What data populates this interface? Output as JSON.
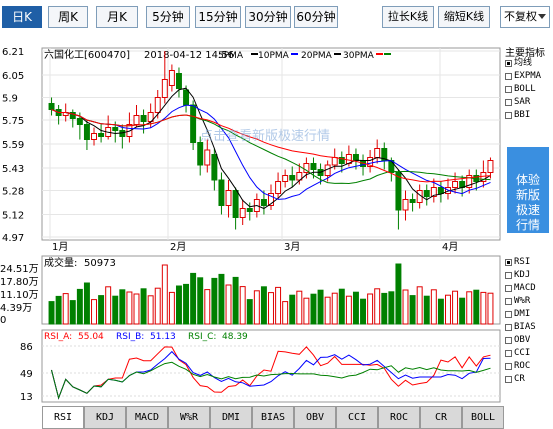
{
  "period_tabs": [
    {
      "label": "日K",
      "active": true
    },
    {
      "label": "周K",
      "active": false
    },
    {
      "label": "月K",
      "active": false
    },
    {
      "label": "5分钟",
      "active": false
    },
    {
      "label": "15分钟",
      "active": false
    },
    {
      "label": "30分钟",
      "active": false
    },
    {
      "label": "60分钟",
      "active": false
    }
  ],
  "toolbar": {
    "lengthen_label": "拉长K线",
    "shorten_label": "缩短K线",
    "adjust_label": "不复权"
  },
  "header": {
    "stock": "六国化工[600470]",
    "datetime": "2018-04-12 14:56",
    "ma_labels": [
      "5PMA",
      "10PMA",
      "20PMA",
      "30PMA"
    ]
  },
  "watermark": "点击查看新版极速行情",
  "main_indicators": {
    "title": "主要指标",
    "items": [
      {
        "label": "均线",
        "checked": true
      },
      {
        "label": "EXPMA",
        "checked": false
      },
      {
        "label": "BOLL",
        "checked": false
      },
      {
        "label": "SAR",
        "checked": false
      },
      {
        "label": "BBI",
        "checked": false
      }
    ]
  },
  "ad_text": [
    "体验",
    "新版",
    "极速",
    "行情"
  ],
  "sub_indicators": [
    {
      "label": "RSI",
      "checked": true
    },
    {
      "label": "KDJ",
      "checked": false
    },
    {
      "label": "MACD",
      "checked": false
    },
    {
      "label": "W%R",
      "checked": false
    },
    {
      "label": "DMI",
      "checked": false
    },
    {
      "label": "BIAS",
      "checked": false
    },
    {
      "label": "OBV",
      "checked": false
    },
    {
      "label": "CCI",
      "checked": false
    },
    {
      "label": "ROC",
      "checked": false
    },
    {
      "label": "CR",
      "checked": false
    }
  ],
  "bottom_tabs": [
    "RSI",
    "KDJ",
    "MACD",
    "W%R",
    "DMI",
    "BIAS",
    "OBV",
    "CCI",
    "ROC",
    "CR",
    "BOLL"
  ],
  "volume": {
    "label": "成交量:",
    "value": "50973",
    "ticks": [
      "24.51万",
      "17.80万",
      "11.10万",
      "4.39万",
      "0"
    ]
  },
  "rsi": {
    "a_label": "RSI_A:",
    "a_value": "55.04",
    "b_label": "RSI_B:",
    "b_value": "51.13",
    "c_label": "RSI_C:",
    "c_value": "48.39",
    "ticks": [
      "86",
      "49",
      "13"
    ]
  },
  "chart_data": {
    "type": "candlestick",
    "y_ticks": [
      6.21,
      6.05,
      5.9,
      5.75,
      5.59,
      5.43,
      5.28,
      5.12,
      4.97
    ],
    "ylim": [
      4.97,
      6.21
    ],
    "x_ticks": [
      "1月",
      "2月",
      "3月",
      "4月"
    ],
    "candles": [
      [
        5.86,
        5.82,
        5.9,
        5.78
      ],
      [
        5.82,
        5.78,
        5.85,
        5.72
      ],
      [
        5.78,
        5.8,
        5.86,
        5.74
      ],
      [
        5.8,
        5.76,
        5.82,
        5.7
      ],
      [
        5.76,
        5.72,
        5.8,
        5.62
      ],
      [
        5.72,
        5.62,
        5.75,
        5.55
      ],
      [
        5.62,
        5.66,
        5.7,
        5.58
      ],
      [
        5.66,
        5.64,
        5.72,
        5.6
      ],
      [
        5.64,
        5.7,
        5.78,
        5.62
      ],
      [
        5.7,
        5.68,
        5.74,
        5.6
      ],
      [
        5.68,
        5.64,
        5.72,
        5.56
      ],
      [
        5.64,
        5.72,
        5.8,
        5.6
      ],
      [
        5.72,
        5.78,
        5.85,
        5.7
      ],
      [
        5.78,
        5.74,
        5.82,
        5.66
      ],
      [
        5.74,
        5.8,
        5.86,
        5.7
      ],
      [
        5.8,
        5.9,
        5.95,
        5.76
      ],
      [
        5.9,
        6.02,
        6.21,
        5.86
      ],
      [
        5.98,
        6.08,
        6.12,
        5.94
      ],
      [
        6.06,
        5.96,
        6.1,
        5.9
      ],
      [
        5.95,
        5.85,
        5.98,
        5.8
      ],
      [
        5.85,
        5.6,
        5.88,
        5.55
      ],
      [
        5.6,
        5.45,
        5.64,
        5.38
      ],
      [
        5.45,
        5.55,
        5.62,
        5.4
      ],
      [
        5.52,
        5.35,
        5.56,
        5.28
      ],
      [
        5.35,
        5.18,
        5.4,
        5.12
      ],
      [
        5.18,
        5.28,
        5.35,
        5.1
      ],
      [
        5.28,
        5.1,
        5.3,
        5.02
      ],
      [
        5.1,
        5.16,
        5.22,
        5.05
      ],
      [
        5.16,
        5.14,
        5.2,
        5.08
      ],
      [
        5.14,
        5.22,
        5.26,
        5.1
      ],
      [
        5.22,
        5.18,
        5.28,
        5.12
      ],
      [
        5.18,
        5.26,
        5.32,
        5.15
      ],
      [
        5.26,
        5.34,
        5.4,
        5.22
      ],
      [
        5.34,
        5.38,
        5.42,
        5.3
      ],
      [
        5.38,
        5.35,
        5.44,
        5.3
      ],
      [
        5.35,
        5.4,
        5.46,
        5.32
      ],
      [
        5.4,
        5.46,
        5.5,
        5.36
      ],
      [
        5.46,
        5.42,
        5.5,
        5.36
      ],
      [
        5.42,
        5.38,
        5.46,
        5.32
      ],
      [
        5.38,
        5.45,
        5.48,
        5.34
      ],
      [
        5.45,
        5.5,
        5.56,
        5.42
      ],
      [
        5.5,
        5.46,
        5.54,
        5.4
      ],
      [
        5.46,
        5.52,
        5.58,
        5.44
      ],
      [
        5.52,
        5.48,
        5.56,
        5.42
      ],
      [
        5.48,
        5.44,
        5.52,
        5.38
      ],
      [
        5.44,
        5.5,
        5.55,
        5.4
      ],
      [
        5.5,
        5.56,
        5.62,
        5.46
      ],
      [
        5.56,
        5.48,
        5.6,
        5.42
      ],
      [
        5.48,
        5.4,
        5.5,
        5.34
      ],
      [
        5.4,
        5.15,
        5.42,
        5.02
      ],
      [
        5.15,
        5.22,
        5.28,
        5.08
      ],
      [
        5.22,
        5.2,
        5.26,
        5.14
      ],
      [
        5.2,
        5.28,
        5.32,
        5.16
      ],
      [
        5.28,
        5.24,
        5.32,
        5.18
      ],
      [
        5.24,
        5.3,
        5.36,
        5.2
      ],
      [
        5.3,
        5.26,
        5.34,
        5.2
      ],
      [
        5.26,
        5.3,
        5.36,
        5.22
      ],
      [
        5.3,
        5.34,
        5.4,
        5.26
      ],
      [
        5.34,
        5.3,
        5.38,
        5.24
      ],
      [
        5.3,
        5.38,
        5.42,
        5.26
      ],
      [
        5.38,
        5.34,
        5.42,
        5.28
      ],
      [
        5.34,
        5.4,
        5.48,
        5.3
      ],
      [
        5.4,
        5.48,
        5.5,
        5.36
      ]
    ]
  }
}
